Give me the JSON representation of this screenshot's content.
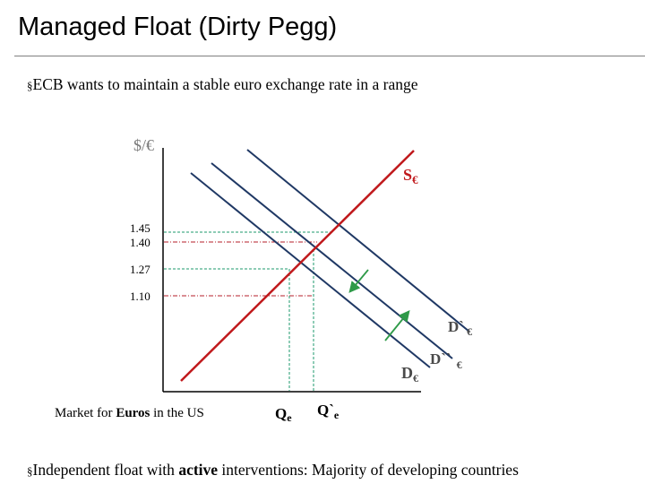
{
  "title": "Managed Float (Dirty Pegg)",
  "bullets": {
    "marker": "§",
    "first": "ECB wants to maintain a stable  euro exchange rate in a range",
    "second_pre": "Independent float with ",
    "second_bold": "active",
    "second_post": " interventions: Majority of developing countries"
  },
  "diagram": {
    "y_axis_label": "$/€",
    "price_ticks": [
      "1.45",
      "1.40",
      "1.27",
      "1.10"
    ],
    "supply_label": "S",
    "supply_sub": "€",
    "demand_label": "D",
    "demand_sub": "€",
    "demand2_label": "D`",
    "demand2_sub": "€",
    "demand3_label": "D``",
    "demand3_sub": "€",
    "market_pre": "Market for ",
    "market_bold": "Euros",
    "market_post": " in the US",
    "q1_label": "Q",
    "q1_sub": "e",
    "q2_label": "Q`",
    "q2_sub": "e",
    "colors": {
      "supply": "#c0191c",
      "demand": "#1f3864",
      "arrow": "#2e9a48",
      "guide_green": "#1e9a6e",
      "guide_red": "#b41e2a"
    }
  }
}
